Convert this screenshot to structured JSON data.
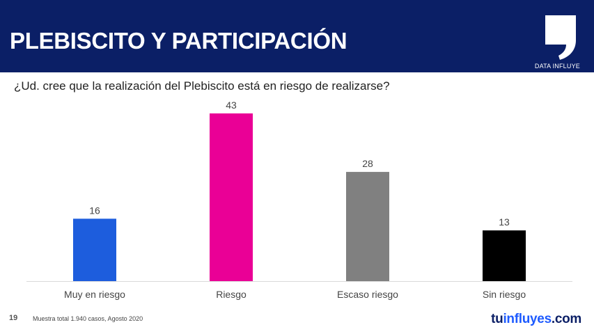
{
  "header": {
    "title": "PLEBISCITO Y PARTICIPACIÓN",
    "logo_caption": "DATA INFLUYE",
    "logo_icon": "comma-quote-icon",
    "background_color": "#0b1f66"
  },
  "question": "¿Ud. cree que la realización del Plebiscito está en riesgo de realizarse?",
  "chart_data": {
    "type": "bar",
    "title": "¿Ud. cree que la realización del Plebiscito está en riesgo de realizarse?",
    "categories": [
      "Muy en riesgo",
      "Riesgo",
      "Escaso riesgo",
      "Sin riesgo"
    ],
    "values": [
      16,
      43,
      28,
      13
    ],
    "colors": [
      "#1d5ddd",
      "#ea0096",
      "#808080",
      "#000000"
    ],
    "data_labels": [
      "16",
      "43",
      "28",
      "13"
    ],
    "xlabel": "",
    "ylabel": "",
    "ylim": [
      0,
      43
    ],
    "grid": false,
    "legend": "none"
  },
  "footer": {
    "page_number": "19",
    "note": "Muestra total 1.940 casos, Agosto 2020",
    "brand_part1": "tu",
    "brand_part2": "influyes",
    "brand_part3": ".com"
  }
}
